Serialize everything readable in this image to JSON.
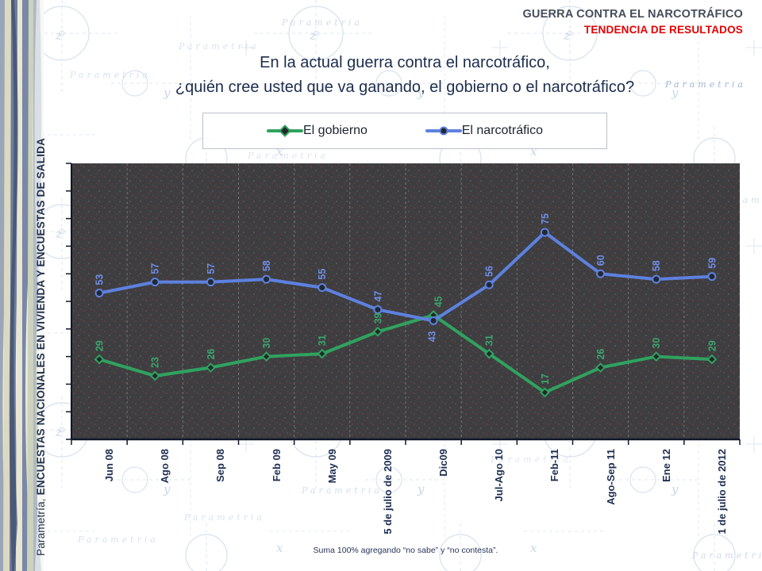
{
  "header": {
    "line1": "GUERRA CONTRA EL NARCOTRÁFICO",
    "line2": "TENDENCIA DE RESULTADOS",
    "accent_color": "#e60000"
  },
  "title": {
    "line1": "En la actual guerra contra el narcotráfico,",
    "line2": "¿quién cree usted que va ganando, el gobierno o el narcotráfico?"
  },
  "legend": {
    "items": [
      {
        "label": "El gobierno",
        "color": "#2fa35e",
        "marker": "diamond"
      },
      {
        "label": "El narcotráfico",
        "color": "#5d81e0",
        "marker": "circle"
      }
    ]
  },
  "sidebar": {
    "text_regular": "Parametría, ",
    "text_bold": "ENCUESTAS NACIONALES EN VIVIENDA Y ENCUESTAS DE SALIDA"
  },
  "footnote": "Suma 100%  agregando “no sabe” y “no contesta”.",
  "watermark": "Parametria",
  "chart_data": {
    "type": "line",
    "title": "En la actual guerra contra el narcotráfico, ¿quién cree usted que va ganando, el gobierno o el narcotráfico?",
    "categories": [
      "Jun 08",
      "Ago 08",
      "Sep 08",
      "Feb 09",
      "May 09",
      "5 de julio de 2009",
      "Dic09",
      "Jul-Ago 10",
      "Feb-11",
      "Ago-Sep 11",
      "Ene 12",
      "1 de julio de 2012"
    ],
    "series": [
      {
        "name": "El gobierno",
        "color": "#2fa35e",
        "label_color": "#3aa56b",
        "marker": "diamond",
        "values": [
          29,
          23,
          26,
          30,
          31,
          39,
          45,
          31,
          17,
          26,
          30,
          29
        ]
      },
      {
        "name": "El narcotráfico",
        "color": "#5d81e0",
        "label_color": "#6f8ee8",
        "marker": "circle",
        "values": [
          53,
          57,
          57,
          58,
          55,
          47,
          43,
          56,
          75,
          60,
          58,
          59
        ]
      }
    ],
    "xlabel": "",
    "ylabel": "",
    "ylim": [
      0,
      100
    ],
    "grid": "vertical",
    "legend_position": "top",
    "plot_bg": "#3e3e40",
    "label_overrides": [
      {
        "series": 0,
        "index": 6,
        "dx": 6
      },
      {
        "series": 1,
        "index": 6,
        "position": "below",
        "dx": -2
      }
    ]
  }
}
